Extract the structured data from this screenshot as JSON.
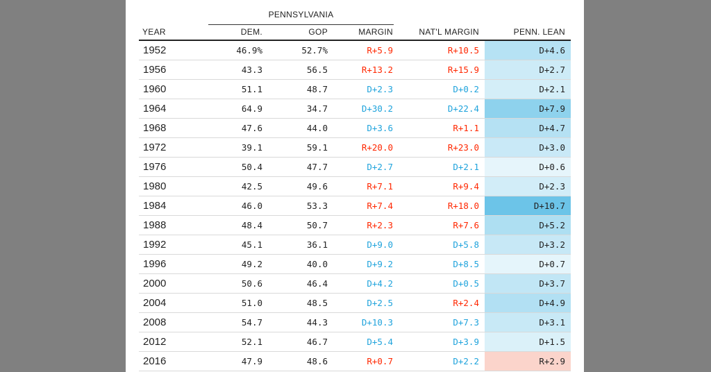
{
  "chart_data": {
    "type": "table",
    "group_header": "PENNSYLVANIA",
    "columns": [
      "YEAR",
      "DEM.",
      "GOP",
      "MARGIN",
      "NAT'L MARGIN",
      "PENN. LEAN"
    ],
    "rows": [
      {
        "year": "1952",
        "dem": "46.9%",
        "gop": "52.7%",
        "margin": "R+5.9",
        "nat": "R+10.5",
        "lean": "D+4.6",
        "lean_value": 4.6
      },
      {
        "year": "1956",
        "dem": "43.3",
        "gop": "56.5",
        "margin": "R+13.2",
        "nat": "R+15.9",
        "lean": "D+2.7",
        "lean_value": 2.7
      },
      {
        "year": "1960",
        "dem": "51.1",
        "gop": "48.7",
        "margin": "D+2.3",
        "nat": "D+0.2",
        "lean": "D+2.1",
        "lean_value": 2.1
      },
      {
        "year": "1964",
        "dem": "64.9",
        "gop": "34.7",
        "margin": "D+30.2",
        "nat": "D+22.4",
        "lean": "D+7.9",
        "lean_value": 7.9
      },
      {
        "year": "1968",
        "dem": "47.6",
        "gop": "44.0",
        "margin": "D+3.6",
        "nat": "R+1.1",
        "lean": "D+4.7",
        "lean_value": 4.7
      },
      {
        "year": "1972",
        "dem": "39.1",
        "gop": "59.1",
        "margin": "R+20.0",
        "nat": "R+23.0",
        "lean": "D+3.0",
        "lean_value": 3.0
      },
      {
        "year": "1976",
        "dem": "50.4",
        "gop": "47.7",
        "margin": "D+2.7",
        "nat": "D+2.1",
        "lean": "D+0.6",
        "lean_value": 0.6
      },
      {
        "year": "1980",
        "dem": "42.5",
        "gop": "49.6",
        "margin": "R+7.1",
        "nat": "R+9.4",
        "lean": "D+2.3",
        "lean_value": 2.3
      },
      {
        "year": "1984",
        "dem": "46.0",
        "gop": "53.3",
        "margin": "R+7.4",
        "nat": "R+18.0",
        "lean": "D+10.7",
        "lean_value": 10.7
      },
      {
        "year": "1988",
        "dem": "48.4",
        "gop": "50.7",
        "margin": "R+2.3",
        "nat": "R+7.6",
        "lean": "D+5.2",
        "lean_value": 5.2
      },
      {
        "year": "1992",
        "dem": "45.1",
        "gop": "36.1",
        "margin": "D+9.0",
        "nat": "D+5.8",
        "lean": "D+3.2",
        "lean_value": 3.2
      },
      {
        "year": "1996",
        "dem": "49.2",
        "gop": "40.0",
        "margin": "D+9.2",
        "nat": "D+8.5",
        "lean": "D+0.7",
        "lean_value": 0.7
      },
      {
        "year": "2000",
        "dem": "50.6",
        "gop": "46.4",
        "margin": "D+4.2",
        "nat": "D+0.5",
        "lean": "D+3.7",
        "lean_value": 3.7
      },
      {
        "year": "2004",
        "dem": "51.0",
        "gop": "48.5",
        "margin": "D+2.5",
        "nat": "R+2.4",
        "lean": "D+4.9",
        "lean_value": 4.9
      },
      {
        "year": "2008",
        "dem": "54.7",
        "gop": "44.3",
        "margin": "D+10.3",
        "nat": "D+7.3",
        "lean": "D+3.1",
        "lean_value": 3.1
      },
      {
        "year": "2012",
        "dem": "52.1",
        "gop": "46.7",
        "margin": "D+5.4",
        "nat": "D+3.9",
        "lean": "D+1.5",
        "lean_value": 1.5
      },
      {
        "year": "2016",
        "dem": "47.9",
        "gop": "48.6",
        "margin": "R+0.7",
        "nat": "D+2.2",
        "lean": "R+2.9",
        "lean_value": -2.9
      }
    ]
  },
  "colors": {
    "dem_text": "#1fa3dc",
    "gop_text": "#ff2700",
    "dem_shade": "#6cc4e8",
    "gop_shade": "#fbd4cb"
  }
}
